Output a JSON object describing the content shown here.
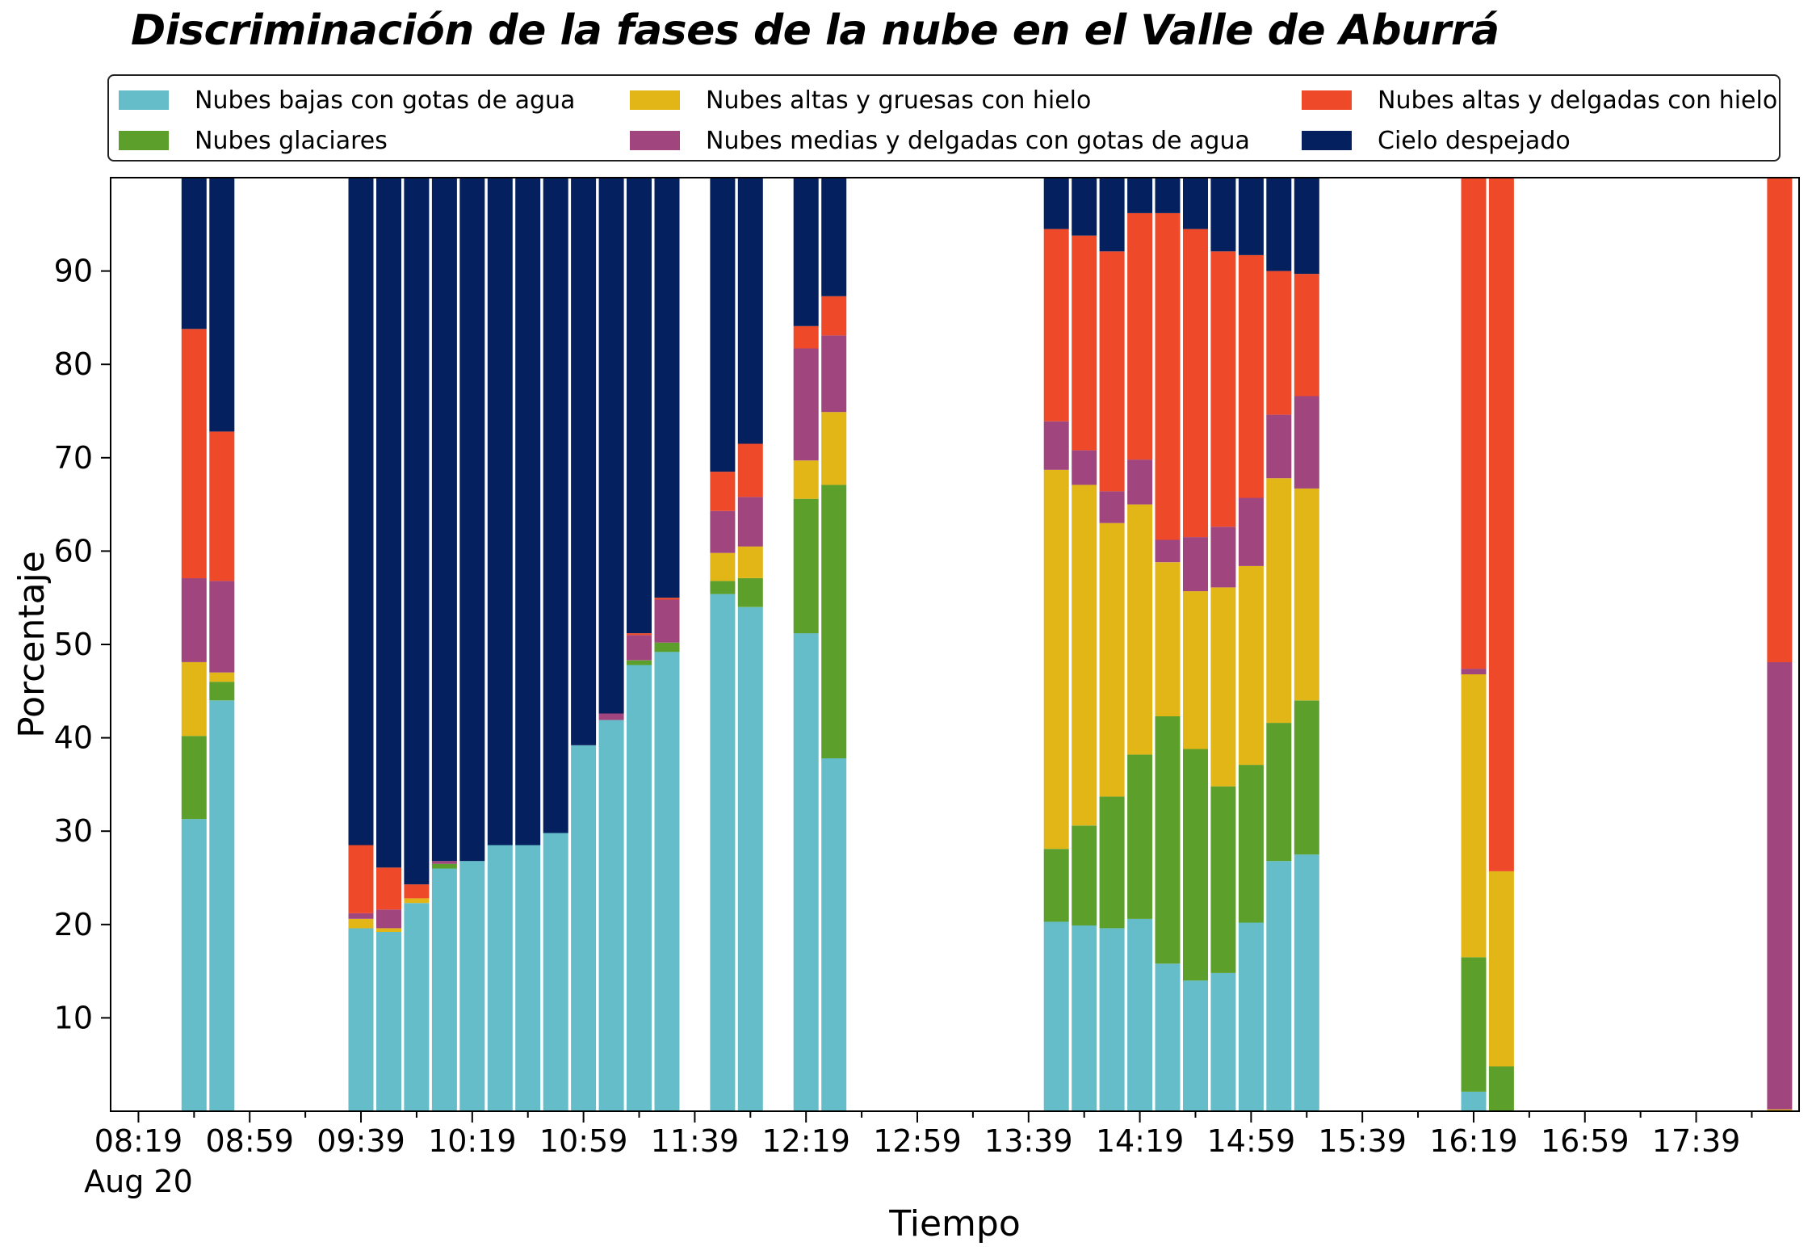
{
  "chart_data": {
    "type": "bar",
    "stacked": true,
    "title": "Discriminación de la fases de la nube en el Valle de Aburrá",
    "xlabel": "Tiempo",
    "ylabel": "Porcentaje",
    "ylim": [
      0,
      100
    ],
    "yticks": [
      10,
      20,
      30,
      40,
      50,
      60,
      70,
      80,
      90
    ],
    "x_tick_labels": [
      "08:19",
      "08:59",
      "09:39",
      "10:19",
      "10:59",
      "11:39",
      "12:19",
      "12:59",
      "13:39",
      "14:19",
      "14:59",
      "15:39",
      "16:19",
      "16:59",
      "17:39"
    ],
    "x_date_label": "Aug 20",
    "legend_position": "top, above plot",
    "categories": [
      "08:39",
      "08:49",
      "09:39",
      "09:49",
      "09:59",
      "10:09",
      "10:19",
      "10:29",
      "10:39",
      "10:49",
      "10:59",
      "11:09",
      "11:19",
      "11:29",
      "11:49",
      "11:59",
      "12:19",
      "12:29",
      "13:49",
      "13:59",
      "14:09",
      "14:19",
      "14:29",
      "14:39",
      "14:49",
      "14:59",
      "15:09",
      "15:19",
      "16:19",
      "16:29",
      "18:09"
    ],
    "series": [
      {
        "name": "Nubes bajas con gotas de agua",
        "color": "#65bdc9",
        "values": [
          31.3,
          44.0,
          19.6,
          19.2,
          22.3,
          26.0,
          26.8,
          28.5,
          28.5,
          29.8,
          39.2,
          41.9,
          47.8,
          49.2,
          55.4,
          54.0,
          51.2,
          37.8,
          20.3,
          19.9,
          19.6,
          20.6,
          15.8,
          14.0,
          14.8,
          20.2,
          26.8,
          27.5,
          2.1,
          0.0,
          0.0
        ]
      },
      {
        "name": "Nubes glaciares",
        "color": "#5c9f2b",
        "values": [
          8.9,
          2.0,
          0.0,
          0.0,
          0.0,
          0.5,
          0.0,
          0.0,
          0.0,
          0.0,
          0.0,
          0.0,
          0.5,
          1.0,
          1.4,
          3.1,
          14.4,
          29.3,
          7.8,
          10.7,
          14.1,
          17.6,
          26.5,
          24.8,
          20.0,
          16.9,
          14.8,
          16.5,
          14.4,
          4.8,
          0.0
        ]
      },
      {
        "name": "Nubes altas y gruesas con hielo",
        "color": "#e3b617",
        "values": [
          7.9,
          1.0,
          1.0,
          0.4,
          0.5,
          0.0,
          0.0,
          0.0,
          0.0,
          0.0,
          0.0,
          0.0,
          0.0,
          0.0,
          3.0,
          3.4,
          4.1,
          7.8,
          40.6,
          36.5,
          29.3,
          26.8,
          16.5,
          16.9,
          21.3,
          21.3,
          26.2,
          22.7,
          30.3,
          20.9,
          0.2
        ]
      },
      {
        "name": "Nubes medias y delgadas con gotas de agua",
        "color": "#a0457d",
        "values": [
          9.0,
          9.8,
          0.6,
          2.0,
          0.0,
          0.3,
          0.0,
          0.0,
          0.0,
          0.0,
          0.0,
          0.7,
          2.7,
          4.6,
          4.5,
          5.3,
          12.0,
          8.2,
          5.2,
          3.7,
          3.4,
          4.8,
          2.4,
          5.8,
          6.5,
          7.3,
          6.8,
          9.9,
          0.6,
          0.0,
          47.9
        ]
      },
      {
        "name": "Nubes altas y delgadas con hielo",
        "color": "#ee4a2a",
        "values": [
          26.7,
          16.0,
          7.3,
          4.5,
          1.5,
          0.0,
          0.0,
          0.0,
          0.0,
          0.0,
          0.0,
          0.0,
          0.2,
          0.2,
          4.2,
          5.7,
          2.4,
          4.2,
          20.6,
          23.0,
          25.7,
          26.4,
          35.0,
          33.0,
          29.5,
          26.0,
          15.4,
          13.1,
          52.6,
          74.3,
          51.9
        ]
      },
      {
        "name": "Cielo despejado",
        "color": "#04205e",
        "values": [
          16.2,
          27.2,
          71.5,
          73.9,
          75.7,
          73.2,
          73.2,
          71.5,
          71.5,
          70.2,
          60.8,
          57.4,
          48.8,
          45.0,
          31.5,
          28.5,
          15.9,
          12.7,
          5.5,
          6.2,
          7.9,
          3.8,
          3.8,
          5.5,
          7.9,
          8.3,
          10.0,
          10.3,
          0.0,
          0.0,
          0.0
        ]
      }
    ]
  }
}
